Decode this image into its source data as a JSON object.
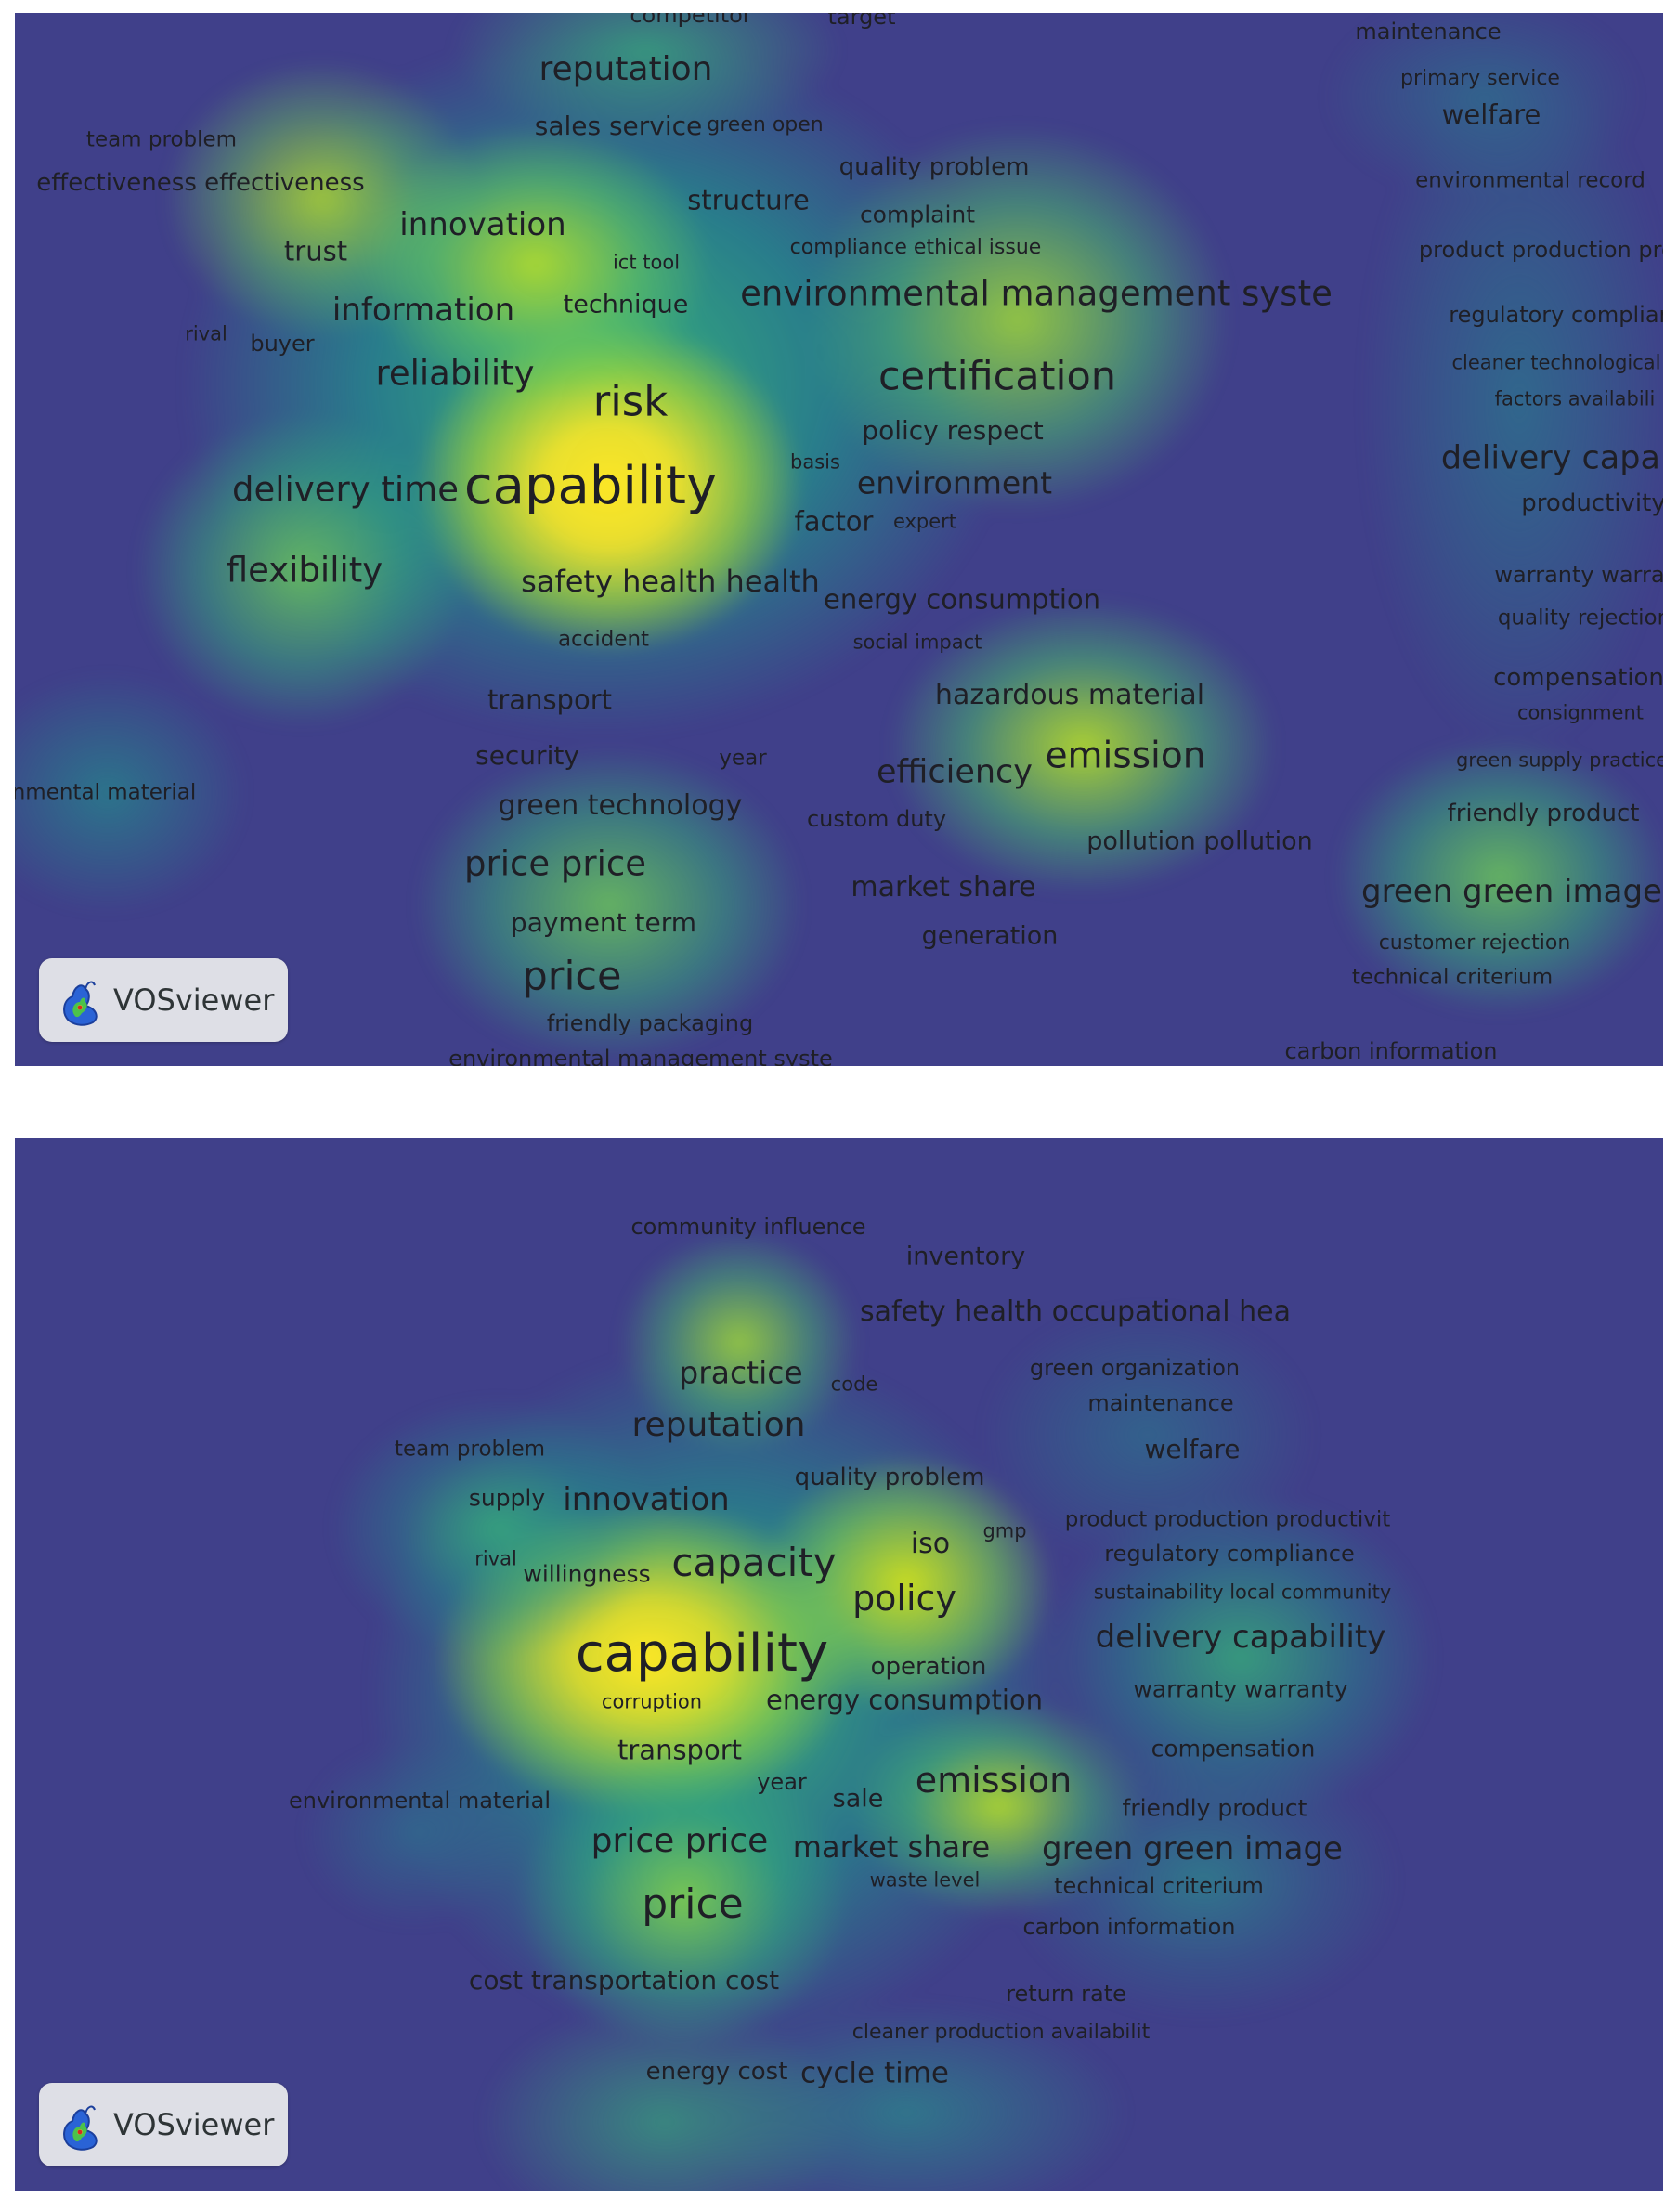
{
  "logo": {
    "text": "VOSviewer"
  },
  "colors": {
    "background": "#40408a",
    "density_low": "#21a48c",
    "density_mid": "#84d84a",
    "density_high": "#fde725",
    "label_text": "#1f1f26"
  },
  "map_top": {
    "terms": [
      {
        "text": "competitor"
      },
      {
        "text": "target"
      },
      {
        "text": "reputation"
      },
      {
        "text": "sales service"
      },
      {
        "text": "green open"
      },
      {
        "text": "team problem"
      },
      {
        "text": "effectiveness effectiveness"
      },
      {
        "text": "quality problem"
      },
      {
        "text": "structure"
      },
      {
        "text": "complaint"
      },
      {
        "text": "innovation"
      },
      {
        "text": "trust"
      },
      {
        "text": "ict tool"
      },
      {
        "text": "compliance ethical issue"
      },
      {
        "text": "environmental management syste"
      },
      {
        "text": "information"
      },
      {
        "text": "technique"
      },
      {
        "text": "rival"
      },
      {
        "text": "buyer"
      },
      {
        "text": "reliability"
      },
      {
        "text": "risk"
      },
      {
        "text": "certification"
      },
      {
        "text": "policy respect"
      },
      {
        "text": "basis"
      },
      {
        "text": "delivery time"
      },
      {
        "text": "capability"
      },
      {
        "text": "environment"
      },
      {
        "text": "factor"
      },
      {
        "text": "expert"
      },
      {
        "text": "flexibility"
      },
      {
        "text": "safety health health"
      },
      {
        "text": "energy consumption"
      },
      {
        "text": "accident"
      },
      {
        "text": "social impact"
      },
      {
        "text": "transport"
      },
      {
        "text": "hazardous material"
      },
      {
        "text": "security"
      },
      {
        "text": "year"
      },
      {
        "text": "efficiency"
      },
      {
        "text": "emission"
      },
      {
        "text": "nmental material"
      },
      {
        "text": "green technology"
      },
      {
        "text": "custom duty"
      },
      {
        "text": "pollution pollution"
      },
      {
        "text": "price price"
      },
      {
        "text": "market share"
      },
      {
        "text": "payment term"
      },
      {
        "text": "generation"
      },
      {
        "text": "price"
      },
      {
        "text": "friendly packaging"
      },
      {
        "text": "environmental management syste"
      },
      {
        "text": "maintenance"
      },
      {
        "text": "primary service"
      },
      {
        "text": "welfare"
      },
      {
        "text": "environmental record"
      },
      {
        "text": "product production produ"
      },
      {
        "text": "regulatory complian"
      },
      {
        "text": "cleaner technological"
      },
      {
        "text": "factors availabili"
      },
      {
        "text": "delivery capab"
      },
      {
        "text": "productivity"
      },
      {
        "text": "warranty warra"
      },
      {
        "text": "quality rejection"
      },
      {
        "text": "compensation"
      },
      {
        "text": "consignment"
      },
      {
        "text": "green supply practice"
      },
      {
        "text": "friendly product"
      },
      {
        "text": "green green image"
      },
      {
        "text": "customer rejection"
      },
      {
        "text": "technical criterium"
      },
      {
        "text": "carbon information"
      }
    ]
  },
  "map_bottom": {
    "terms": [
      {
        "text": "community influence"
      },
      {
        "text": "inventory"
      },
      {
        "text": "safety health occupational hea"
      },
      {
        "text": "practice"
      },
      {
        "text": "code"
      },
      {
        "text": "green organization"
      },
      {
        "text": "reputation"
      },
      {
        "text": "maintenance"
      },
      {
        "text": "team problem"
      },
      {
        "text": "welfare"
      },
      {
        "text": "quality problem"
      },
      {
        "text": "supply"
      },
      {
        "text": "innovation"
      },
      {
        "text": "product production productivit"
      },
      {
        "text": "gmp"
      },
      {
        "text": "iso"
      },
      {
        "text": "regulatory compliance"
      },
      {
        "text": "rival"
      },
      {
        "text": "willingness"
      },
      {
        "text": "capacity"
      },
      {
        "text": "sustainability local community"
      },
      {
        "text": "policy"
      },
      {
        "text": "delivery capability"
      },
      {
        "text": "capability"
      },
      {
        "text": "operation"
      },
      {
        "text": "corruption"
      },
      {
        "text": "energy consumption"
      },
      {
        "text": "warranty warranty"
      },
      {
        "text": "transport"
      },
      {
        "text": "compensation"
      },
      {
        "text": "year"
      },
      {
        "text": "emission"
      },
      {
        "text": "environmental material"
      },
      {
        "text": "sale"
      },
      {
        "text": "friendly product"
      },
      {
        "text": "price price"
      },
      {
        "text": "market share"
      },
      {
        "text": "green green image"
      },
      {
        "text": "waste level"
      },
      {
        "text": "technical criterium"
      },
      {
        "text": "price"
      },
      {
        "text": "carbon information"
      },
      {
        "text": "cost transportation cost"
      },
      {
        "text": "return rate"
      },
      {
        "text": "cleaner production availabilit"
      },
      {
        "text": "energy cost"
      },
      {
        "text": "cycle time"
      }
    ]
  }
}
